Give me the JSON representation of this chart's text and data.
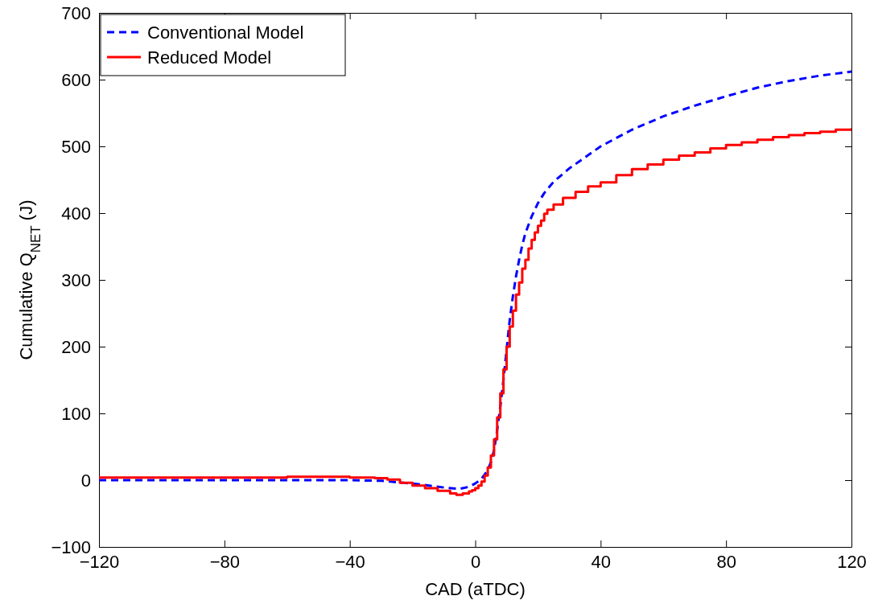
{
  "chart_data": {
    "type": "line",
    "xlabel": "CAD (aTDC)",
    "ylabel": "Cumulative Q$_{NET}$ (J)",
    "xlim": [
      -120,
      120
    ],
    "xticks": [
      -120,
      -80,
      -40,
      0,
      40,
      80,
      120
    ],
    "ylim": [
      -100,
      700
    ],
    "yticks": [
      -100,
      0,
      100,
      200,
      300,
      400,
      500,
      600,
      700
    ],
    "legend": "top left",
    "grid": false,
    "series": [
      {
        "name": "Conventional Model",
        "color": "#0000ff",
        "line_style": "dashed",
        "x": [
          -120,
          -40,
          -30,
          -20,
          -10,
          -5,
          -2,
          0,
          2,
          4,
          5,
          6,
          7,
          8,
          9,
          10,
          11,
          12,
          13,
          14,
          15,
          16,
          18,
          20,
          22,
          25,
          30,
          40,
          50,
          60,
          70,
          80,
          90,
          100,
          110,
          120
        ],
        "values": [
          0,
          0,
          -1,
          -5,
          -11,
          -13,
          -10,
          -5,
          2,
          15,
          27,
          45,
          75,
          110,
          150,
          195,
          240,
          275,
          305,
          330,
          352,
          370,
          395,
          415,
          430,
          447,
          467,
          500,
          525,
          545,
          561,
          575,
          588,
          598,
          606,
          612
        ]
      },
      {
        "name": "Reduced Model",
        "type": "step",
        "color": "#ff0000",
        "line_style": "solid",
        "x": [
          -120,
          -100,
          -80,
          -60,
          -40,
          -32,
          -28,
          -24,
          -20,
          -16,
          -12,
          -8,
          -6,
          -4,
          -2,
          -1,
          0,
          1,
          2,
          3,
          4,
          5,
          6,
          7,
          8,
          9,
          10,
          11,
          12,
          13,
          14,
          15,
          16,
          17,
          18,
          19,
          20,
          21,
          22,
          23,
          25,
          28,
          32,
          36,
          40,
          45,
          50,
          55,
          60,
          65,
          70,
          75,
          80,
          85,
          90,
          95,
          100,
          105,
          110,
          115,
          120
        ],
        "values": [
          4,
          4,
          4,
          5,
          4,
          3,
          1,
          -4,
          -8,
          -12,
          -16,
          -20,
          -22,
          -20,
          -17,
          -15,
          -12,
          -8,
          -2,
          7,
          19,
          37,
          61,
          94,
          130,
          166,
          200,
          230,
          254,
          278,
          296,
          317,
          330,
          347,
          360,
          371,
          381,
          389,
          399,
          405,
          413,
          423,
          432,
          440,
          446,
          457,
          466,
          473,
          480,
          486,
          491,
          497,
          502,
          506,
          510,
          514,
          517,
          520,
          522,
          525,
          527
        ]
      }
    ]
  }
}
